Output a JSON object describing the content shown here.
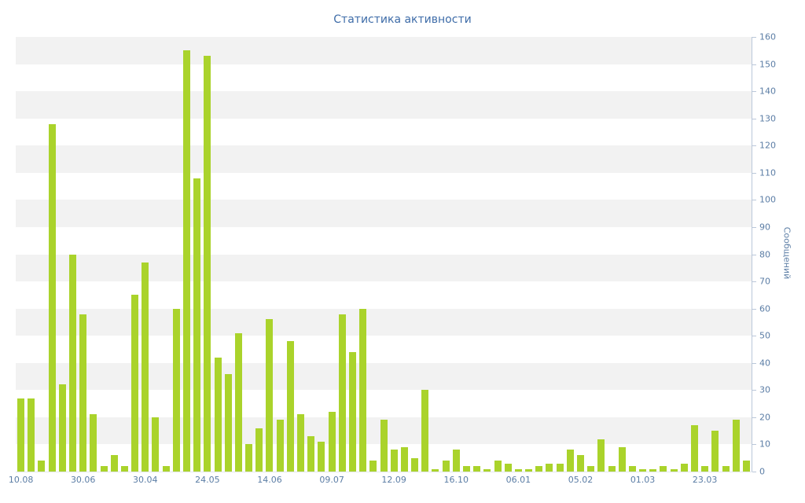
{
  "chart_data": {
    "type": "bar",
    "title": "Статистика активности",
    "ylabel": "Сообщений",
    "xlabel": "",
    "ylim": [
      0,
      160
    ],
    "y_ticks": [
      0,
      10,
      20,
      30,
      40,
      50,
      60,
      70,
      80,
      90,
      100,
      110,
      120,
      130,
      140,
      150,
      160
    ],
    "x_tick_labels": [
      "10.08",
      "30.06",
      "30.04",
      "24.05",
      "14.06",
      "09.07",
      "12.09",
      "16.10",
      "06.01",
      "05.02",
      "01.03",
      "23.03"
    ],
    "x_tick_indices": [
      0,
      6,
      12,
      18,
      24,
      30,
      36,
      42,
      48,
      54,
      60,
      66
    ],
    "values": [
      27,
      27,
      4,
      128,
      32,
      80,
      58,
      21,
      2,
      6,
      2,
      65,
      77,
      20,
      2,
      60,
      155,
      108,
      153,
      42,
      36,
      51,
      10,
      16,
      56,
      19,
      48,
      21,
      13,
      11,
      22,
      58,
      44,
      60,
      4,
      19,
      8,
      9,
      5,
      30,
      1,
      4,
      8,
      2,
      2,
      1,
      4,
      3,
      1,
      1,
      2,
      3,
      3,
      8,
      6,
      2,
      12,
      2,
      9,
      2,
      1,
      1,
      2,
      1,
      3,
      17,
      2,
      15,
      2,
      19,
      4
    ],
    "legend": null,
    "grid": "alternating-horizontal-bands",
    "legend_position": "none",
    "colors": {
      "bar": "#aad32b",
      "band": "#f2f2f2",
      "band_alt": "#ffffff",
      "axis_text": "#5b7da5",
      "title_text": "#3e6ca8",
      "axis_line": "#bac7d9"
    }
  }
}
